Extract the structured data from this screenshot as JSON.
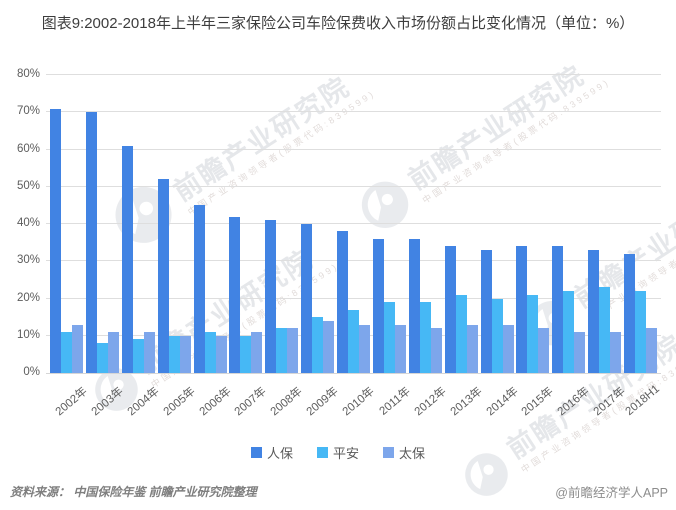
{
  "title": "图表9:2002-2018年上半年三家保险公司车险保费收入市场份额占比变化情况（单位：%）",
  "chart_data": {
    "type": "bar",
    "categories": [
      "2002年",
      "2003年",
      "2004年",
      "2005年",
      "2006年",
      "2007年",
      "2008年",
      "2009年",
      "2010年",
      "2011年",
      "2012年",
      "2013年",
      "2014年",
      "2015年",
      "2016年",
      "2017年",
      "2018H1"
    ],
    "series": [
      {
        "name": "人保",
        "color": "#4183E3",
        "values": [
          71,
          70,
          61,
          52,
          45,
          42,
          41,
          40,
          38,
          36,
          36,
          34,
          33,
          34,
          34,
          33,
          32
        ]
      },
      {
        "name": "平安",
        "color": "#46B8F5",
        "values": [
          11,
          8,
          9,
          10,
          11,
          10,
          12,
          15,
          17,
          19,
          19,
          21,
          20,
          21,
          22,
          23,
          22
        ]
      },
      {
        "name": "太保",
        "color": "#7DA6EB",
        "values": [
          13,
          11,
          11,
          10,
          10,
          11,
          12,
          14,
          13,
          13,
          12,
          13,
          13,
          12,
          11,
          11,
          12
        ]
      }
    ],
    "ylim": [
      0,
      80
    ],
    "ytick_step": 10,
    "ytick_labels": [
      "0%",
      "10%",
      "20%",
      "30%",
      "40%",
      "50%",
      "60%",
      "70%",
      "80%"
    ],
    "grid": true,
    "legend_position": "bottom",
    "last_group_labels": [
      "32%",
      "22%",
      "12%"
    ]
  },
  "watermark": {
    "main": "前瞻产业研究院",
    "sub": "中国产业咨询领导者(股票代码:839599)"
  },
  "footer": {
    "source": "资料来源：  中国保险年鉴  前瞻产业研究院整理",
    "credit": "@前瞻经济学人APP"
  }
}
